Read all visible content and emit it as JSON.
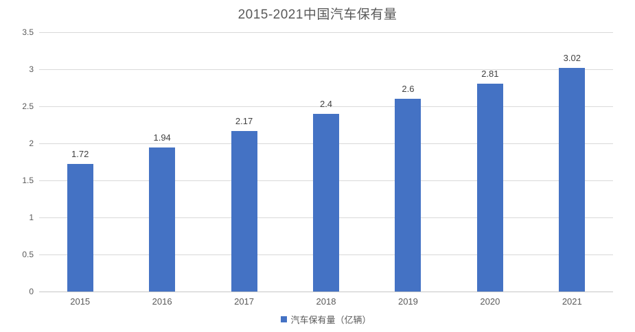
{
  "chart_data": {
    "type": "bar",
    "title": "2015-2021中国汽车保有量",
    "categories": [
      "2015",
      "2016",
      "2017",
      "2018",
      "2019",
      "2020",
      "2021"
    ],
    "series": [
      {
        "name": "汽车保有量（亿辆）",
        "values": [
          1.72,
          1.94,
          2.17,
          2.4,
          2.6,
          2.81,
          3.02
        ]
      }
    ],
    "value_labels": [
      "1.72",
      "1.94",
      "2.17",
      "2.4",
      "2.6",
      "2.81",
      "3.02"
    ],
    "xlabel": "",
    "ylabel": "",
    "ylim": [
      0,
      3.5
    ],
    "ytick_step": 0.5,
    "ytick_labels": [
      "0",
      "0.5",
      "1",
      "1.5",
      "2",
      "2.5",
      "3",
      "3.5"
    ],
    "grid": true,
    "legend_position": "bottom",
    "colors": {
      "bar": "#4472C4",
      "gridline": "#d9d9d9",
      "axis_line": "#c6c6c6",
      "title_text": "#595959",
      "tick_text": "#595959",
      "data_label_text": "#404040"
    }
  }
}
